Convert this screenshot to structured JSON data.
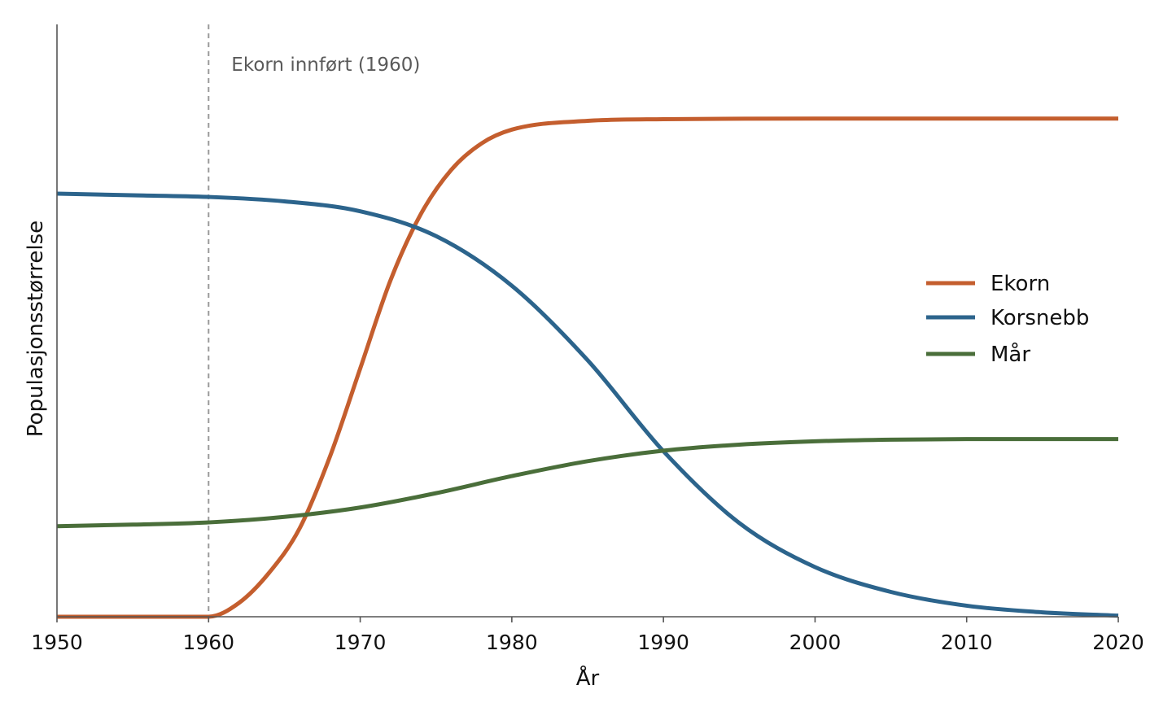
{
  "chart_data": {
    "type": "line",
    "xlabel": "År",
    "ylabel": "Populasjonsstørrelse",
    "xlim": [
      1950,
      2020
    ],
    "ylim": [
      0,
      100
    ],
    "x_ticks": [
      "1950",
      "1960",
      "1970",
      "1980",
      "1990",
      "2000",
      "2010",
      "2020"
    ],
    "y_ticks_shown": false,
    "grid": false,
    "legend_position": "right",
    "annotation": {
      "text": "Ekorn innført (1960)",
      "x": 1960
    },
    "series": [
      {
        "name": "Ekorn",
        "color": "#c45e2e",
        "x": [
          1950,
          1960,
          1962,
          1964,
          1966,
          1968,
          1970,
          1972,
          1974,
          1976,
          1978,
          1980,
          1985,
          1990,
          2000,
          2010,
          2020
        ],
        "y": [
          0,
          0,
          2.5,
          8,
          16,
          29,
          45,
          61,
          73,
          81,
          85.8,
          88.3,
          89.9,
          90.2,
          90.3,
          90.3,
          90.3
        ]
      },
      {
        "name": "Korsnebb",
        "color": "#2c648c",
        "x": [
          1950,
          1955,
          1960,
          1965,
          1970,
          1975,
          1980,
          1985,
          1990,
          1995,
          2000,
          2005,
          2010,
          2015,
          2020
        ],
        "y": [
          76.7,
          76.4,
          76.1,
          75.3,
          73.5,
          69,
          60,
          46.5,
          30,
          17,
          9,
          4.5,
          2,
          0.8,
          0.2
        ]
      },
      {
        "name": "Mår",
        "color": "#4a6e3a",
        "x": [
          1950,
          1955,
          1960,
          1965,
          1970,
          1975,
          1980,
          1985,
          1990,
          1995,
          2000,
          2005,
          2010,
          2015,
          2020
        ],
        "y": [
          16.4,
          16.7,
          17.1,
          18.1,
          19.8,
          22.4,
          25.5,
          28.2,
          30.1,
          31.2,
          31.8,
          32.1,
          32.2,
          32.2,
          32.2
        ]
      }
    ]
  }
}
